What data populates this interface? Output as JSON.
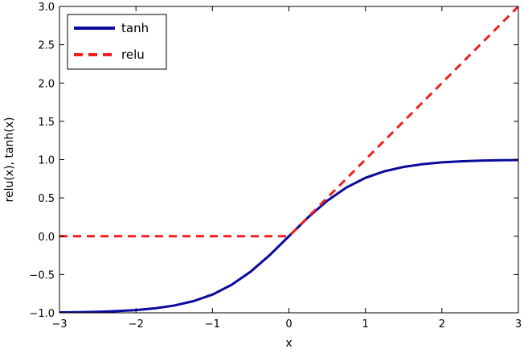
{
  "chart_data": {
    "type": "line",
    "title": "",
    "xlabel": "x",
    "ylabel": "relu(x), tanh(x)",
    "xlim": [
      -3,
      3
    ],
    "ylim": [
      -1.0,
      3.0
    ],
    "xticks": [
      -3,
      -2,
      -1,
      0,
      1,
      2,
      3
    ],
    "xtick_labels": [
      "−3",
      "−2",
      "−1",
      "0",
      "1",
      "2",
      "3"
    ],
    "yticks": [
      -1.0,
      -0.5,
      0.0,
      0.5,
      1.0,
      1.5,
      2.0,
      2.5,
      3.0
    ],
    "ytick_labels": [
      "−1.0",
      "−0.5",
      "0.0",
      "0.5",
      "1.0",
      "1.5",
      "2.0",
      "2.5",
      "3.0"
    ],
    "grid": false,
    "legend_position": "top-left",
    "series": [
      {
        "name": "tanh",
        "style": "solid",
        "color": "#0a0a9e",
        "x": [
          -3.0,
          -2.75,
          -2.5,
          -2.25,
          -2.0,
          -1.75,
          -1.5,
          -1.25,
          -1.0,
          -0.75,
          -0.5,
          -0.25,
          0.0,
          0.25,
          0.5,
          0.75,
          1.0,
          1.25,
          1.5,
          1.75,
          2.0,
          2.25,
          2.5,
          2.75,
          3.0
        ],
        "y": [
          -0.995,
          -0.992,
          -0.987,
          -0.978,
          -0.964,
          -0.941,
          -0.905,
          -0.848,
          -0.762,
          -0.635,
          -0.462,
          -0.245,
          0.0,
          0.245,
          0.462,
          0.635,
          0.762,
          0.848,
          0.905,
          0.941,
          0.964,
          0.978,
          0.987,
          0.992,
          0.995
        ]
      },
      {
        "name": "relu",
        "style": "dashed",
        "color": "#ee2020",
        "x": [
          -3.0,
          0.0,
          3.0
        ],
        "y": [
          0.0,
          0.0,
          3.0
        ]
      }
    ]
  }
}
